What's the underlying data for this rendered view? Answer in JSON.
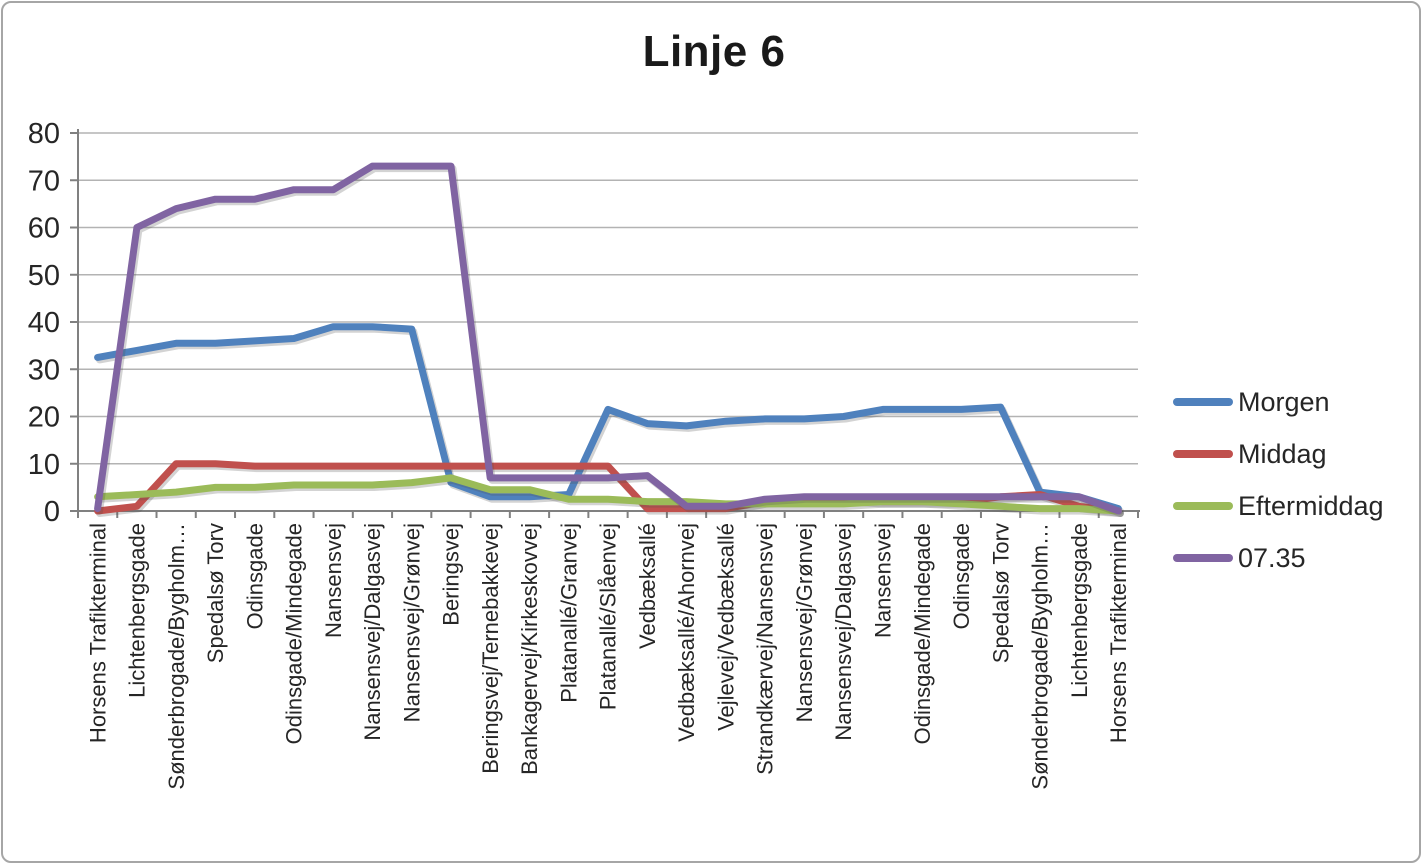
{
  "title": "Linje 6",
  "chart_data": {
    "type": "line",
    "title": "Linje 6",
    "xlabel": "",
    "ylabel": "",
    "ylim": [
      0,
      80
    ],
    "ytick_step": 10,
    "grid": true,
    "legend_position": "right",
    "categories": [
      "Horsens Trafikterminal",
      "Lichtenbergsgade",
      "Sønderbrogade/Bygholm…",
      "Spedalsø Torv",
      "Odinsgade",
      "Odinsgade/Mindegade",
      "Nansensvej",
      "Nansensvej/Dalgasvej",
      "Nansensvej/Grønvej",
      "Beringsvej",
      "Beringsvej/Ternebakkevej",
      "Bankagervej/Kirkeskovvej",
      "Platanallé/Granvej",
      "Platanallé/Slåenvej",
      "Vedbæksallé",
      "Vedbæksallé/Ahornvej",
      "Vejlevej/Vedbæksallé",
      "Strandkærvej/Nansensvej",
      "Nansensvej/Grønvej",
      "Nansensvej/Dalgasvej",
      "Nansensvej",
      "Odinsgade/Mindegade",
      "Odinsgade",
      "Spedalsø Torv",
      "Sønderbrogade/Bygholm…",
      "Lichtenbergsgade",
      "Horsens Trafikterminal"
    ],
    "series": [
      {
        "name": "Morgen",
        "color": "#4F81BD",
        "values": [
          32.5,
          34,
          35.5,
          35.5,
          36,
          36.5,
          39,
          39,
          38.5,
          6,
          3,
          3,
          3.5,
          21.5,
          18.5,
          18,
          19,
          19.5,
          19.5,
          20,
          21.5,
          21.5,
          21.5,
          22,
          4,
          3,
          0.5
        ]
      },
      {
        "name": "Middag",
        "color": "#C0504D",
        "values": [
          0,
          1,
          10,
          10,
          9.5,
          9.5,
          9.5,
          9.5,
          9.5,
          9.5,
          9.5,
          9.5,
          9.5,
          9.5,
          0.5,
          0.5,
          0.5,
          2,
          2.5,
          2.5,
          2,
          2,
          2,
          3,
          3.5,
          1,
          0
        ]
      },
      {
        "name": "Eftermiddag",
        "color": "#9BBB59",
        "values": [
          3,
          3.5,
          4,
          5,
          5,
          5.5,
          5.5,
          5.5,
          6,
          7,
          4.5,
          4.5,
          2.5,
          2.5,
          2,
          2,
          1.5,
          1.5,
          1.5,
          1.5,
          2,
          2,
          1.5,
          1,
          0.5,
          0.5,
          0
        ]
      },
      {
        "name": "07.35",
        "color": "#8064A2",
        "values": [
          0.5,
          60,
          64,
          66,
          66,
          68,
          68,
          73,
          73,
          73,
          7,
          7,
          7,
          7,
          7.5,
          1,
          1,
          2.5,
          3,
          3,
          3,
          3,
          3,
          3,
          3,
          3,
          0
        ]
      }
    ]
  },
  "colors": {
    "gridline": "#b3b3b3",
    "axis": "#808080",
    "tick_text": "#262626",
    "frame_border": "#a6a6a6",
    "background": "#ffffff"
  }
}
